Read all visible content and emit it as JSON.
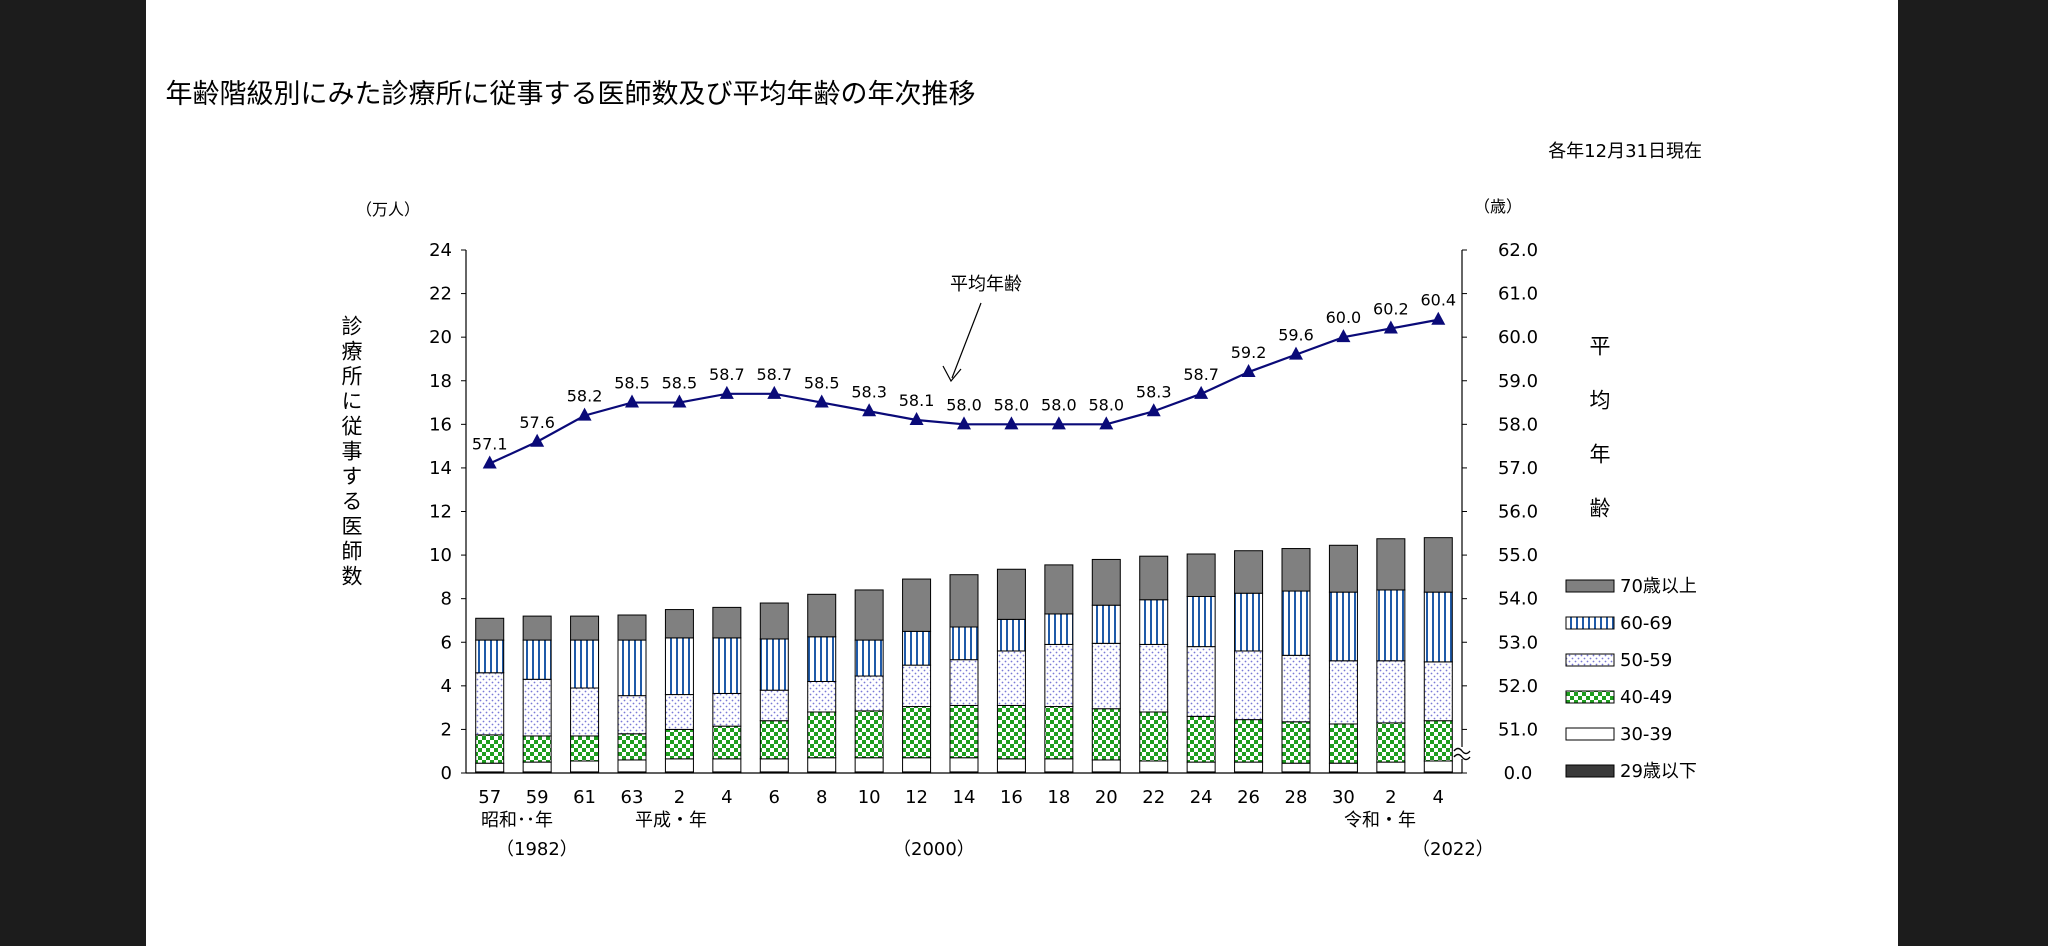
{
  "chart_data": {
    "type": "bar",
    "stacked": true,
    "title": "図３　年齢階級別にみた診療所に従事する医師数及び平均年齢の年次推移",
    "subtitle": "各年12月31日現在",
    "ylabel": "診療所に従事する医師数",
    "ylabel_unit": "（万人）",
    "y2label": "平均年齢",
    "y2label_unit": "（歳）",
    "ylim": [
      0,
      24
    ],
    "yticks": [
      0,
      2,
      4,
      6,
      8,
      10,
      12,
      14,
      16,
      18,
      20,
      22,
      24
    ],
    "y2lim": [
      50,
      62
    ],
    "y2_axis_break": true,
    "y2ticks": [
      "0.0",
      "51.0",
      "52.0",
      "53.0",
      "54.0",
      "55.0",
      "56.0",
      "57.0",
      "58.0",
      "59.0",
      "60.0",
      "61.0",
      "62.0"
    ],
    "categories": [
      "57",
      "59",
      "61",
      "63",
      "2",
      "4",
      "6",
      "8",
      "10",
      "12",
      "14",
      "16",
      "18",
      "20",
      "22",
      "24",
      "26",
      "28",
      "30",
      "2",
      "4"
    ],
    "era_labels": [
      "昭和･･年",
      "平成・年",
      "令和・年"
    ],
    "year_labels": [
      "（1982）",
      "（2000）",
      "（2022）"
    ],
    "legend_position": "right",
    "grid": false,
    "series": [
      {
        "name": "29歳以下",
        "color": "#3a3a3a",
        "values": [
          0.05,
          0.05,
          0.05,
          0.05,
          0.05,
          0.05,
          0.05,
          0.05,
          0.05,
          0.05,
          0.05,
          0.05,
          0.05,
          0.05,
          0.05,
          0.05,
          0.05,
          0.05,
          0.05,
          0.05,
          0.05
        ]
      },
      {
        "name": "30-39",
        "color": "#ffffff",
        "values": [
          0.4,
          0.45,
          0.5,
          0.55,
          0.6,
          0.6,
          0.6,
          0.65,
          0.65,
          0.65,
          0.65,
          0.6,
          0.6,
          0.55,
          0.5,
          0.45,
          0.45,
          0.4,
          0.4,
          0.45,
          0.5
        ]
      },
      {
        "name": "40-49",
        "color": "#22a822",
        "values": [
          1.3,
          1.2,
          1.15,
          1.2,
          1.35,
          1.5,
          1.75,
          2.1,
          2.15,
          2.35,
          2.4,
          2.45,
          2.4,
          2.35,
          2.25,
          2.1,
          1.95,
          1.9,
          1.8,
          1.8,
          1.85
        ]
      },
      {
        "name": "50-59",
        "color": "#9a9ae6",
        "values": [
          2.85,
          2.6,
          2.2,
          1.75,
          1.6,
          1.5,
          1.4,
          1.4,
          1.6,
          1.9,
          2.1,
          2.5,
          2.85,
          3.0,
          3.1,
          3.2,
          3.15,
          3.05,
          2.9,
          2.85,
          2.7
        ]
      },
      {
        "name": "60-69",
        "color": "#1f5aa8",
        "values": [
          1.5,
          1.8,
          2.2,
          2.55,
          2.6,
          2.55,
          2.35,
          2.05,
          1.65,
          1.55,
          1.5,
          1.45,
          1.4,
          1.75,
          2.05,
          2.3,
          2.65,
          2.95,
          3.15,
          3.25,
          3.2
        ]
      },
      {
        "name": "70歳以上",
        "color": "#808080",
        "values": [
          1.0,
          1.1,
          1.1,
          1.15,
          1.3,
          1.4,
          1.65,
          1.95,
          2.3,
          2.4,
          2.4,
          2.3,
          2.25,
          2.1,
          2.0,
          1.95,
          1.95,
          1.95,
          2.15,
          2.35,
          2.5
        ]
      }
    ],
    "line_series": {
      "name": "平均年齢",
      "annotation": "平均年齢",
      "color": "#0a0a78",
      "marker": "triangle",
      "values": [
        57.1,
        57.6,
        58.2,
        58.5,
        58.5,
        58.7,
        58.7,
        58.5,
        58.3,
        58.1,
        58.0,
        58.0,
        58.0,
        58.0,
        58.3,
        58.7,
        59.2,
        59.6,
        60.0,
        60.2,
        60.4
      ],
      "labels": [
        "57.1",
        "57.6",
        "58.2",
        "58.5",
        "58.5",
        "58.7",
        "58.7",
        "58.5",
        "58.3",
        "58.1",
        "58.0",
        "58.0",
        "58.0",
        "58.0",
        "58.3",
        "58.7",
        "59.2",
        "59.6",
        "60.0",
        "60.2",
        "60.4"
      ]
    }
  }
}
